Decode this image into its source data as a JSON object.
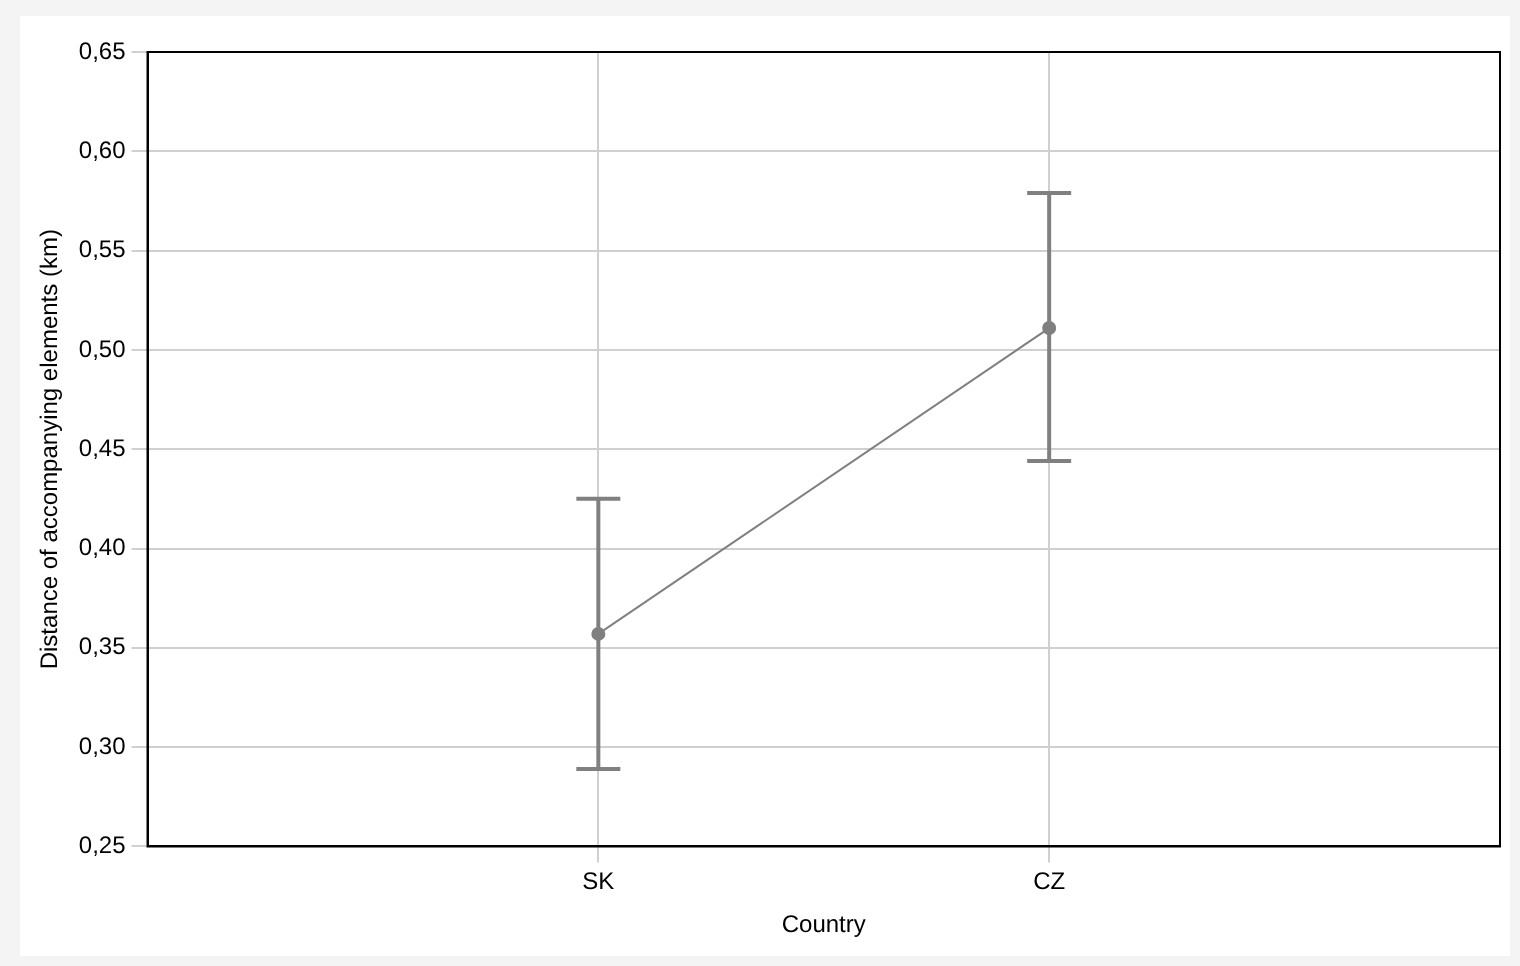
{
  "chart_data": {
    "type": "line",
    "xlabel": "Country",
    "ylabel": "Distance of accompanying elements (km)",
    "categories": [
      "SK",
      "CZ"
    ],
    "series": [
      {
        "color": "#808080",
        "values": [
          0.357,
          0.511
        ],
        "errors": [
          [
            0.289,
            0.425
          ],
          [
            0.444,
            0.579
          ]
        ]
      }
    ],
    "ylim": [
      0.25,
      0.65
    ],
    "yticks": [
      {
        "value": 0.25,
        "label": "0,25"
      },
      {
        "value": 0.3,
        "label": "0,30"
      },
      {
        "value": 0.35,
        "label": "0,35"
      },
      {
        "value": 0.4,
        "label": "0,40"
      },
      {
        "value": 0.45,
        "label": "0,45"
      },
      {
        "value": 0.5,
        "label": "0,50"
      },
      {
        "value": 0.55,
        "label": "0,55"
      },
      {
        "value": 0.6,
        "label": "0,60"
      },
      {
        "value": 0.65,
        "label": "0,65"
      }
    ],
    "grid": true,
    "legend": false,
    "marker": "circle",
    "line_style": "solid"
  }
}
